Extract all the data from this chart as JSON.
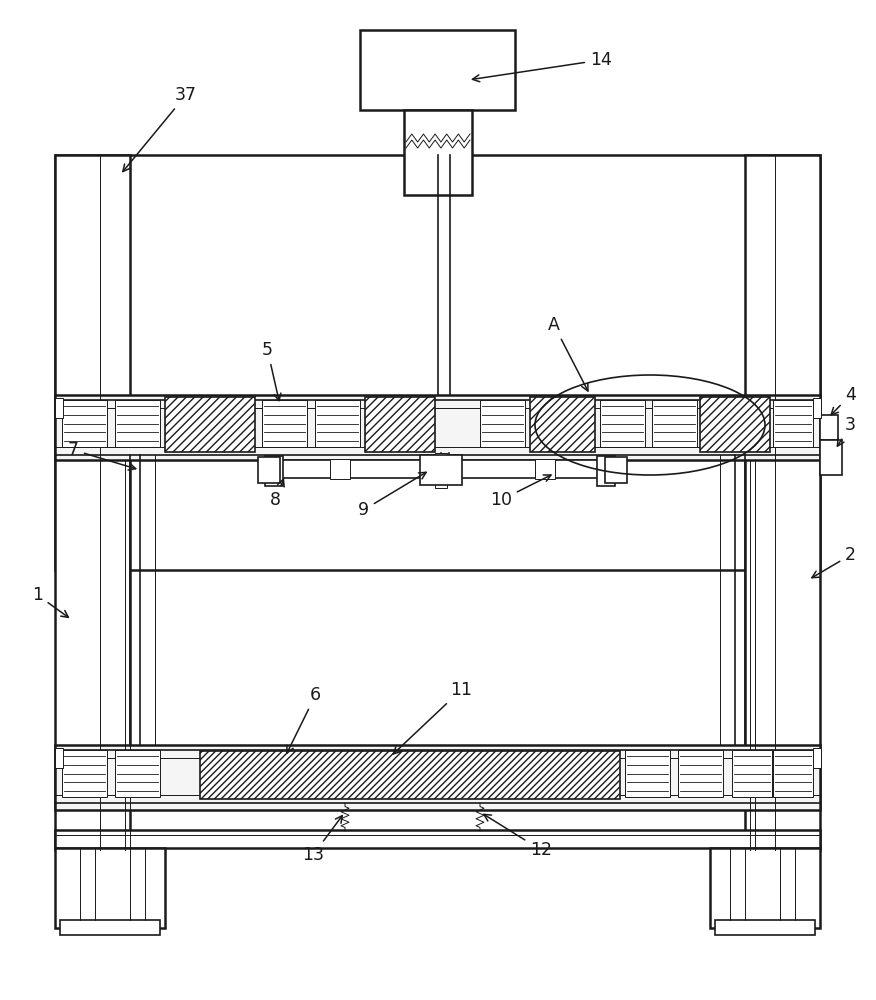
{
  "bg_color": "#ffffff",
  "line_color": "#1a1a1a",
  "fig_width": 8.76,
  "fig_height": 10.0,
  "dpi": 100
}
